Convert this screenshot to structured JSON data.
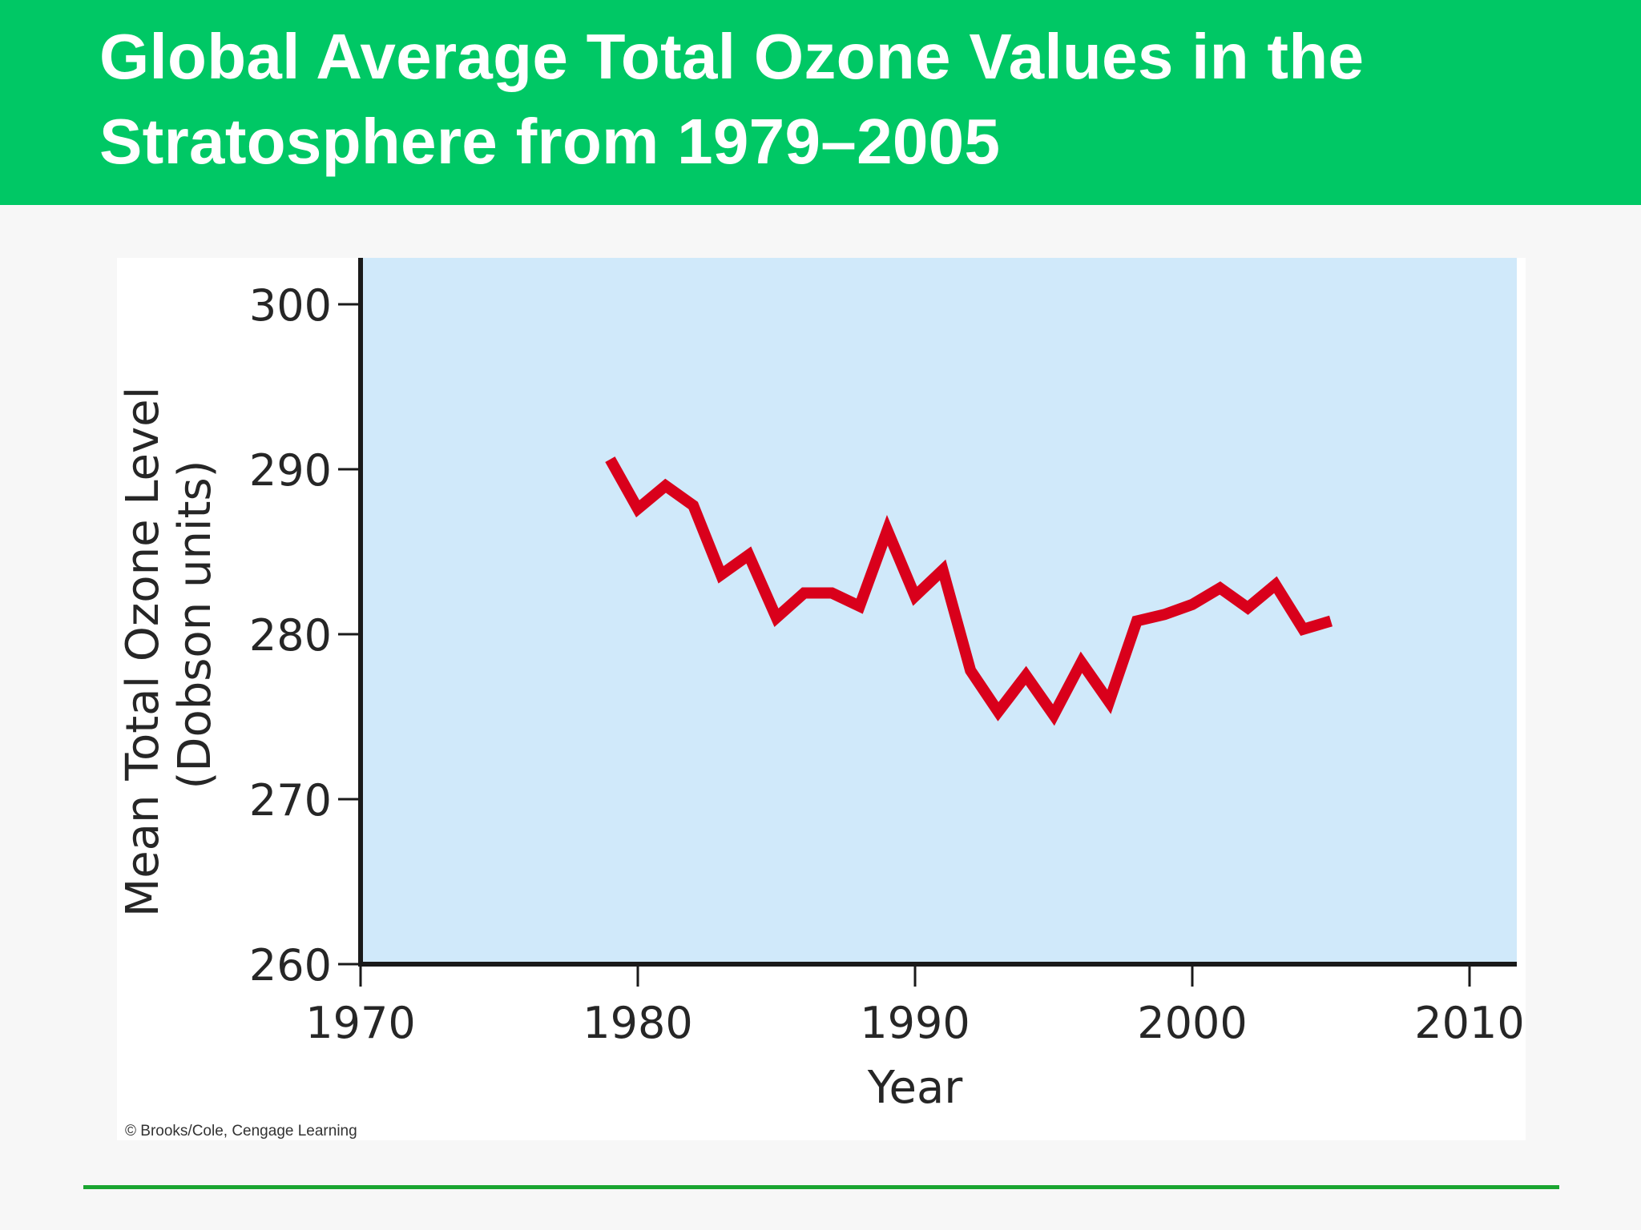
{
  "slide": {
    "title": "Global Average Total Ozone Values in the\nStratosphere from 1979–2005",
    "credit": "© Brooks/Cole, Cengage Learning"
  },
  "colors": {
    "header_green": "#00c865",
    "rule_green": "#1aa531",
    "plot_background": "#d0e9fa",
    "line": "#d9001b",
    "axis": "#1a1a1a"
  },
  "chart_data": {
    "type": "line",
    "xlabel": "Year",
    "ylabel": "Mean Total Ozone Level",
    "ylabel_units": "(Dobson units)",
    "xlim": [
      1970,
      2012
    ],
    "ylim": [
      260,
      302
    ],
    "x_ticks": [
      1970,
      1980,
      1990,
      2000,
      2010
    ],
    "y_ticks": [
      260,
      270,
      280,
      290,
      300
    ],
    "grid": false,
    "legend": "none",
    "series": [
      {
        "x": [
          1979,
          1980,
          1981,
          1982,
          1983,
          1984,
          1985,
          1986,
          1987,
          1988,
          1989,
          1990,
          1991,
          1992,
          1993,
          1994,
          1995,
          1996,
          1997,
          1998,
          1999,
          2000,
          2001,
          2002,
          2003,
          2004,
          2005
        ],
        "y": [
          290.6,
          287.6,
          289.0,
          287.8,
          283.6,
          284.8,
          281.0,
          282.5,
          282.5,
          281.7,
          286.3,
          282.3,
          283.9,
          277.8,
          275.3,
          277.5,
          275.1,
          278.3,
          275.9,
          280.8,
          281.2,
          281.8,
          282.8,
          281.6,
          283.0,
          280.3,
          280.8
        ]
      }
    ]
  }
}
